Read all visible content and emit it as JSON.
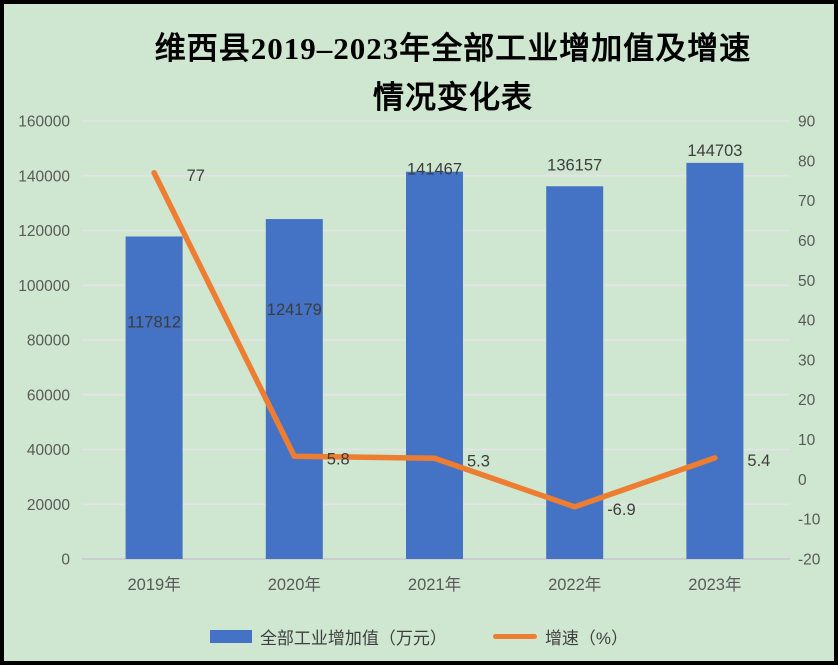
{
  "title": {
    "line1": "维西县2019–2023年全部工业增加值及增速",
    "line2": "情况变化表"
  },
  "chart_data": {
    "type": "combo-bar-line",
    "title": "维西县2019–2023年全部工业增加值及增速情况变化表",
    "categories": [
      "2019年",
      "2020年",
      "2021年",
      "2022年",
      "2023年"
    ],
    "series": [
      {
        "name": "全部工业增加值（万元）",
        "type": "bar",
        "axis": "left",
        "color": "#4472c4",
        "values": [
          117812,
          124179,
          141467,
          136157,
          144703
        ],
        "value_labels": [
          "117812",
          "124179",
          "141467",
          "136157",
          "144703"
        ]
      },
      {
        "name": "增速（%）",
        "type": "line",
        "axis": "right",
        "color": "#ed7d31",
        "values": [
          77,
          5.8,
          5.3,
          -6.9,
          5.4
        ],
        "value_labels": [
          "77",
          "5.8",
          "5.3",
          "-6.9",
          "5.4"
        ]
      }
    ],
    "left_axis": {
      "min": 0,
      "max": 160000,
      "step": 20000,
      "ticks": [
        0,
        20000,
        40000,
        60000,
        80000,
        100000,
        120000,
        140000,
        160000
      ]
    },
    "right_axis": {
      "min": -20,
      "max": 90,
      "step": 10,
      "ticks": [
        -20,
        -10,
        0,
        10,
        20,
        30,
        40,
        50,
        60,
        70,
        80,
        90
      ]
    },
    "grid": true,
    "legend_position": "bottom"
  },
  "legend": {
    "items": [
      {
        "label": "全部工业增加值（万元）"
      },
      {
        "label": "增速（%）"
      }
    ]
  },
  "colors": {
    "background": "#cfe7d0",
    "border": "#000000",
    "bar": "#4472c4",
    "line": "#ed7d31",
    "gridline": "#e6e1ea",
    "zero_line": "#c9c6cf",
    "axis_text": "#595959",
    "data_label_text": "#3d3d3d",
    "title_text": "#000000"
  }
}
